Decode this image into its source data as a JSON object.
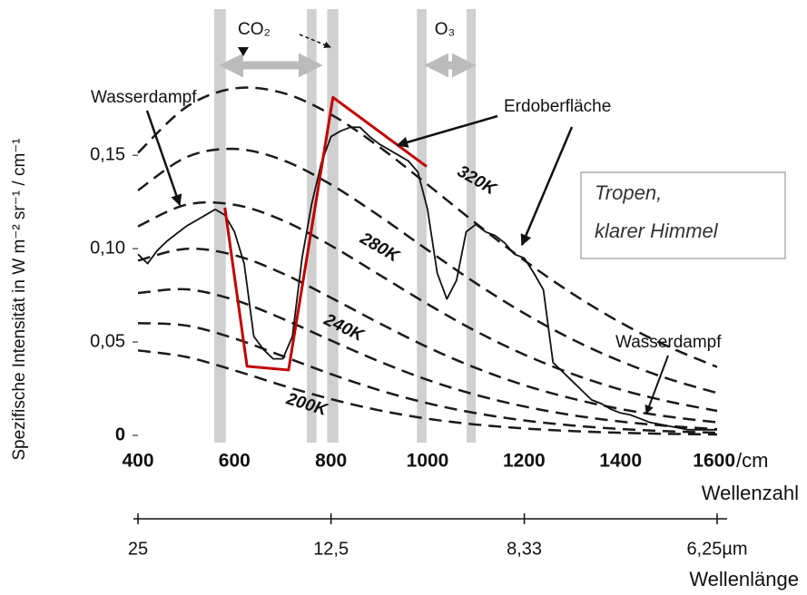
{
  "chart_data": {
    "type": "line",
    "y_label": "Spezifische Intensität in W m⁻² sr⁻¹ / cm⁻¹",
    "x_label": "Wellenzahl",
    "x_unit": "/cm",
    "x2_label": "Wellenlänge",
    "xlim": [
      400,
      1600
    ],
    "xticks": [
      400,
      600,
      800,
      1000,
      1200,
      1400,
      1600
    ],
    "ylim": [
      0,
      0.17
    ],
    "yticks": [
      0,
      {
        "value": 0.05,
        "label": "0,05"
      },
      {
        "value": 0.1,
        "label": "0,10"
      },
      {
        "value": 0.15,
        "label": "0,15"
      }
    ],
    "x2lim": [
      25,
      6.25
    ],
    "x2ticks": [
      {
        "value": 25,
        "label": "25"
      },
      {
        "value": 12.5,
        "label": "12,5"
      },
      {
        "value": 8.33,
        "label": "8,33"
      },
      {
        "value": 6.25,
        "label": "6,25µm"
      }
    ],
    "grid": false,
    "x": [
      400,
      420,
      440,
      460,
      480,
      500,
      520,
      540,
      560,
      580,
      600,
      620,
      640,
      660,
      680,
      700,
      720,
      740,
      760,
      780,
      800,
      820,
      840,
      860,
      880,
      900,
      920,
      940,
      960,
      980,
      1000,
      1020,
      1040,
      1060,
      1080,
      1100,
      1120,
      1140,
      1160,
      1180,
      1200,
      1220,
      1240,
      1260,
      1280,
      1300,
      1320,
      1340,
      1360,
      1380,
      1400,
      1420,
      1440,
      1460,
      1480,
      1500,
      1520,
      1540,
      1560,
      1580,
      1600
    ],
    "series": [
      {
        "color": "#111111",
        "values": [
          0.097,
          0.092,
          0.099,
          0.104,
          0.108,
          0.112,
          0.115,
          0.118,
          0.121,
          0.118,
          0.109,
          0.092,
          0.053,
          0.046,
          0.041,
          0.041,
          0.053,
          0.095,
          0.124,
          0.146,
          0.16,
          0.163,
          0.165,
          0.165,
          0.16,
          0.156,
          0.153,
          0.15,
          0.147,
          0.141,
          0.121,
          0.087,
          0.073,
          0.083,
          0.109,
          0.113,
          0.109,
          0.107,
          0.103,
          0.097,
          0.095,
          0.087,
          0.078,
          0.039,
          0.034,
          0.029,
          0.024,
          0.019,
          0.017,
          0.014,
          0.012,
          0.011,
          0.009,
          0.007,
          0.006,
          0.005,
          0.004,
          0.003,
          0.003,
          0.003,
          0.003
        ]
      }
    ],
    "reference_x": [
      400,
      500,
      600,
      700,
      800,
      900,
      1000,
      1100,
      1200,
      1300,
      1400,
      1500,
      1600
    ],
    "reference_color": "#1a1a1a",
    "reference_curves": [
      {
        "label": "320K",
        "values": [
          0.1513,
          0.1758,
          0.1858,
          0.1834,
          0.1718,
          0.1545,
          0.1343,
          0.1136,
          0.0938,
          0.0759,
          0.0604,
          0.0474,
          0.0366
        ]
      },
      {
        "values": [
          0.1312,
          0.1489,
          0.1534,
          0.1474,
          0.1343,
          0.1175,
          0.0993,
          0.0815,
          0.0654,
          0.0514,
          0.0397,
          0.0302,
          0.0227
        ]
      },
      {
        "label": "280K",
        "values": [
          0.1119,
          0.1235,
          0.1235,
          0.1151,
          0.1016,
          0.086,
          0.0703,
          0.0558,
          0.0433,
          0.0329,
          0.0245,
          0.0181,
          0.0131
        ]
      },
      {
        "values": [
          0.0936,
          0.0999,
          0.0965,
          0.0867,
          0.0737,
          0.0601,
          0.0472,
          0.0361,
          0.0269,
          0.0197,
          0.0141,
          0.01,
          0.007
        ]
      },
      {
        "label": "240K",
        "values": [
          0.0762,
          0.0782,
          0.0725,
          0.0624,
          0.0508,
          0.0396,
          0.0297,
          0.0217,
          0.0155,
          0.0108,
          0.0074,
          0.005,
          0.0033
        ]
      },
      {
        "values": [
          0.0601,
          0.0588,
          0.0519,
          0.0424,
          0.0328,
          0.0242,
          0.0172,
          0.0119,
          0.008,
          0.0053,
          0.0034,
          0.0022,
          0.0014
        ]
      },
      {
        "label": "200K",
        "values": [
          0.0455,
          0.042,
          0.0348,
          0.0267,
          0.0194,
          0.0134,
          0.0089,
          0.0058,
          0.0037,
          0.0023,
          0.0014,
          0.0008,
          0.0005
        ]
      }
    ],
    "highlight": {
      "color": "#c00000",
      "x": [
        580,
        626,
        712,
        804,
        998
      ],
      "y": [
        0.122,
        0.037,
        0.035,
        0.181,
        0.144
      ]
    },
    "bands": [
      [
        558,
        582
      ],
      [
        750,
        770
      ],
      [
        792,
        815
      ],
      [
        978,
        998
      ],
      [
        1081,
        1100
      ]
    ],
    "band_color": "#c8c8c8",
    "annotations": {
      "co2": "CO₂",
      "o3": "O₃",
      "water_vapor_left": "Wasserdampf",
      "surface": "Erdoberfläche",
      "water_vapor_right": "Wasserdampf",
      "box_line1": "Tropen,",
      "box_line2": "klarer Himmel"
    }
  }
}
